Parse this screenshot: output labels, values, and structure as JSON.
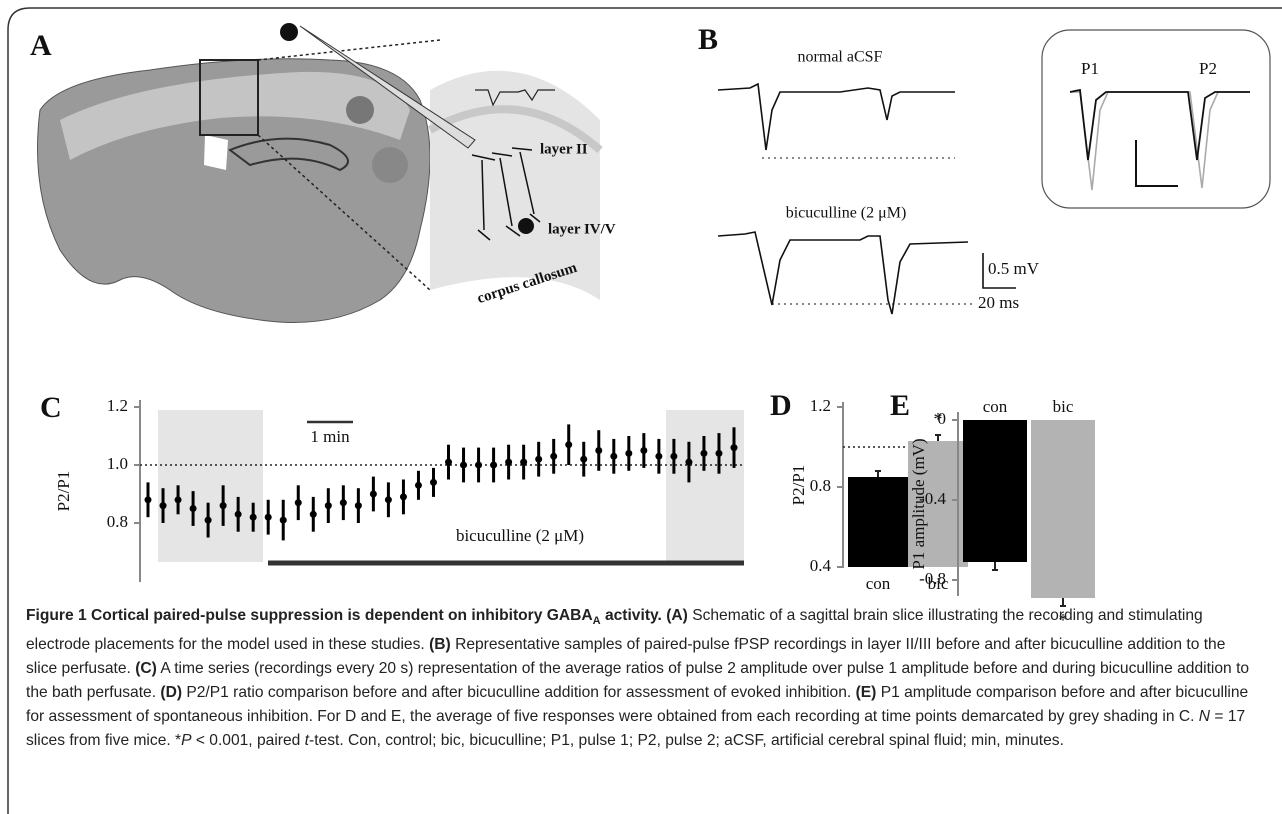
{
  "panels": {
    "a": {
      "label": "A",
      "layer_top": "layer II",
      "layer_bottom": "layer IV/V",
      "tract": "corpus callosum"
    },
    "b": {
      "label": "B",
      "trace_top": "normal aCSF",
      "trace_bottom": "bicuculline (2 μM)",
      "scale_v": "0.5 mV",
      "scale_t": "20 ms",
      "pulse1": "P1",
      "pulse2": "P2"
    }
  },
  "chart_data": [
    {
      "type": "errorbar",
      "label": "C",
      "ylabel": "P2/P1",
      "ylim": [
        0.6,
        1.2
      ],
      "yticks": [
        1.2,
        {
          "value": 1.0,
          "label": "1.0"
        },
        0.8
      ],
      "reference_line": 1.0,
      "annotations": [
        "1 min",
        "bicuculline (2 μM)"
      ],
      "series": [
        {
          "color": "#000000",
          "values": [
            0.88,
            0.86,
            0.88,
            0.85,
            0.81,
            0.86,
            0.83,
            0.82,
            0.82,
            0.81,
            0.87,
            0.83,
            0.86,
            0.87,
            0.86,
            0.9,
            0.88,
            0.89,
            0.93,
            0.94,
            1.01,
            1.0,
            1.0,
            1.0,
            1.01,
            1.01,
            1.02,
            1.03,
            1.07,
            1.02,
            1.05,
            1.03,
            1.04,
            1.05,
            1.03,
            1.03,
            1.01,
            1.04,
            1.04,
            1.06
          ],
          "errors": [
            0.06,
            0.06,
            0.05,
            0.06,
            0.06,
            0.07,
            0.06,
            0.05,
            0.06,
            0.07,
            0.06,
            0.06,
            0.06,
            0.06,
            0.06,
            0.06,
            0.06,
            0.06,
            0.05,
            0.05,
            0.06,
            0.06,
            0.06,
            0.06,
            0.06,
            0.06,
            0.06,
            0.06,
            0.07,
            0.06,
            0.07,
            0.06,
            0.06,
            0.06,
            0.06,
            0.06,
            0.07,
            0.06,
            0.07,
            0.07
          ]
        }
      ]
    },
    {
      "type": "bar",
      "label": "D",
      "ylabel": "P2/P1",
      "ylim": [
        0.4,
        1.2
      ],
      "yticks": [
        1.2,
        0.8,
        0.4
      ],
      "reference_line": 1.0,
      "categories": [
        "con",
        "bic"
      ],
      "annotations": [
        "*"
      ],
      "series": [
        {
          "colors": [
            "#000000",
            "#b3b3b3"
          ],
          "values": [
            0.85,
            1.03
          ],
          "errors": [
            0.03,
            0.03
          ]
        }
      ]
    },
    {
      "type": "bar",
      "label": "E",
      "ylabel": "P1 amplitude (mV)",
      "ylim": [
        -0.9,
        0
      ],
      "yticks": [
        0,
        -0.4,
        -0.8
      ],
      "categories": [
        "con",
        "bic"
      ],
      "annotations": [
        "*"
      ],
      "series": [
        {
          "colors": [
            "#000000",
            "#b3b3b3"
          ],
          "values": [
            -0.71,
            -0.89
          ],
          "errors": [
            0.04,
            0.04
          ]
        }
      ]
    }
  ],
  "caption": [
    {
      "text": "Figure 1 Cortical paired-pulse suppression is dependent on inhibitory GABA",
      "style": "bold"
    },
    {
      "text": "A",
      "style": "sub"
    },
    {
      "text": " activity.",
      "style": "bold"
    },
    {
      "text": " ",
      "style": "plain"
    },
    {
      "text": "(A)",
      "style": "bold"
    },
    {
      "text": " Schematic of a sagittal brain slice illustrating the recording and stimulating electrode placements for the model used in these studies. ",
      "style": "plain"
    },
    {
      "text": "(B)",
      "style": "bold"
    },
    {
      "text": " Representative samples of paired-pulse fPSP recordings in layer II/III before and after bicuculline addition to the slice perfusate. ",
      "style": "plain"
    },
    {
      "text": "(C)",
      "style": "bold"
    },
    {
      "text": " A time series (recordings every 20 s) representation of the average ratios of pulse 2 amplitude over pulse 1 amplitude before and during bicuculline addition to the bath perfusate. ",
      "style": "plain"
    },
    {
      "text": "(D)",
      "style": "bold"
    },
    {
      "text": " P2/P1 ratio comparison before and after bicuculline addition for assessment of evoked inhibition. ",
      "style": "plain"
    },
    {
      "text": "(E)",
      "style": "bold"
    },
    {
      "text": " P1 amplitude comparison before and after bicuculline for assessment of spontaneous inhibition. For D and E, the average of five responses were obtained from each recording at time points demarcated by grey shading in C. ",
      "style": "plain"
    },
    {
      "text": "N",
      "style": "italic"
    },
    {
      "text": " = 17 slices from five mice. *",
      "style": "plain"
    },
    {
      "text": "P",
      "style": "italic"
    },
    {
      "text": " < 0.001, paired ",
      "style": "plain"
    },
    {
      "text": "t",
      "style": "italic"
    },
    {
      "text": "-test. Con, control; bic, bicuculline; P1, pulse 1; P2, pulse 2; aCSF, artificial cerebral spinal fluid; min, minutes.",
      "style": "plain"
    }
  ]
}
